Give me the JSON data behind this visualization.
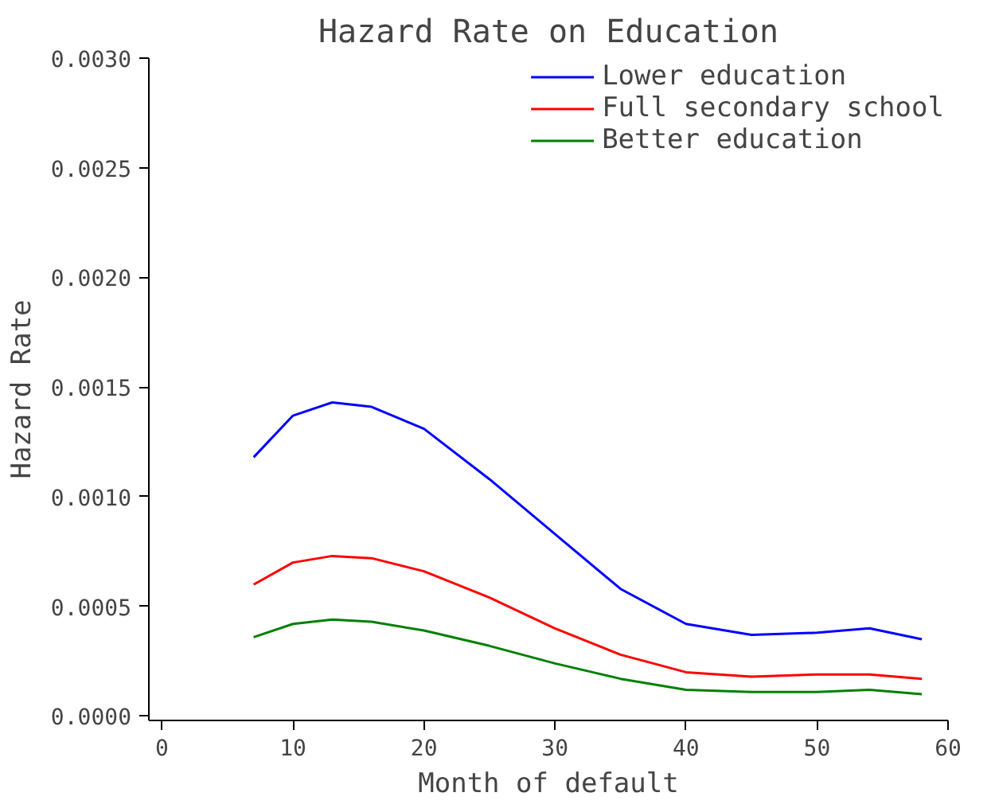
{
  "chart_data": {
    "type": "line",
    "title": "Hazard Rate on Education",
    "xlabel": "Month of default",
    "ylabel": "Hazard Rate",
    "x": [
      7,
      10,
      13,
      16,
      20,
      25,
      30,
      35,
      40,
      45,
      50,
      54,
      58
    ],
    "series": [
      {
        "name": "Lower education",
        "color": "#0000ff",
        "values": [
          0.00118,
          0.00137,
          0.00143,
          0.00141,
          0.00131,
          0.00108,
          0.00083,
          0.00058,
          0.00042,
          0.00037,
          0.00038,
          0.0004,
          0.00035
        ]
      },
      {
        "name": "Full secondary school",
        "color": "#ff0000",
        "values": [
          0.0006,
          0.0007,
          0.00073,
          0.00072,
          0.00066,
          0.00054,
          0.0004,
          0.00028,
          0.0002,
          0.00018,
          0.00019,
          0.00019,
          0.00017
        ]
      },
      {
        "name": "Better education",
        "color": "#008000",
        "values": [
          0.00036,
          0.00042,
          0.00044,
          0.00043,
          0.00039,
          0.00032,
          0.00024,
          0.00017,
          0.00012,
          0.00011,
          0.00011,
          0.00012,
          0.0001
        ]
      }
    ],
    "xlim": [
      -1,
      60
    ],
    "xticks": [
      0,
      10,
      20,
      30,
      40,
      50,
      60
    ],
    "ylim": [
      -2e-05,
      0.003
    ],
    "yticks": [
      {
        "value": 0,
        "label": "0.0000"
      },
      {
        "value": 0.0005,
        "label": "0.0005"
      },
      {
        "value": 0.001,
        "label": "0.0010"
      },
      {
        "value": 0.0015,
        "label": "0.0015"
      },
      {
        "value": 0.002,
        "label": "0.0020"
      },
      {
        "value": 0.0025,
        "label": "0.0025"
      },
      {
        "value": 0.003,
        "label": "0.0030"
      }
    ],
    "grid": false,
    "legend": "top right",
    "marker": "none",
    "line_style": "solid"
  }
}
